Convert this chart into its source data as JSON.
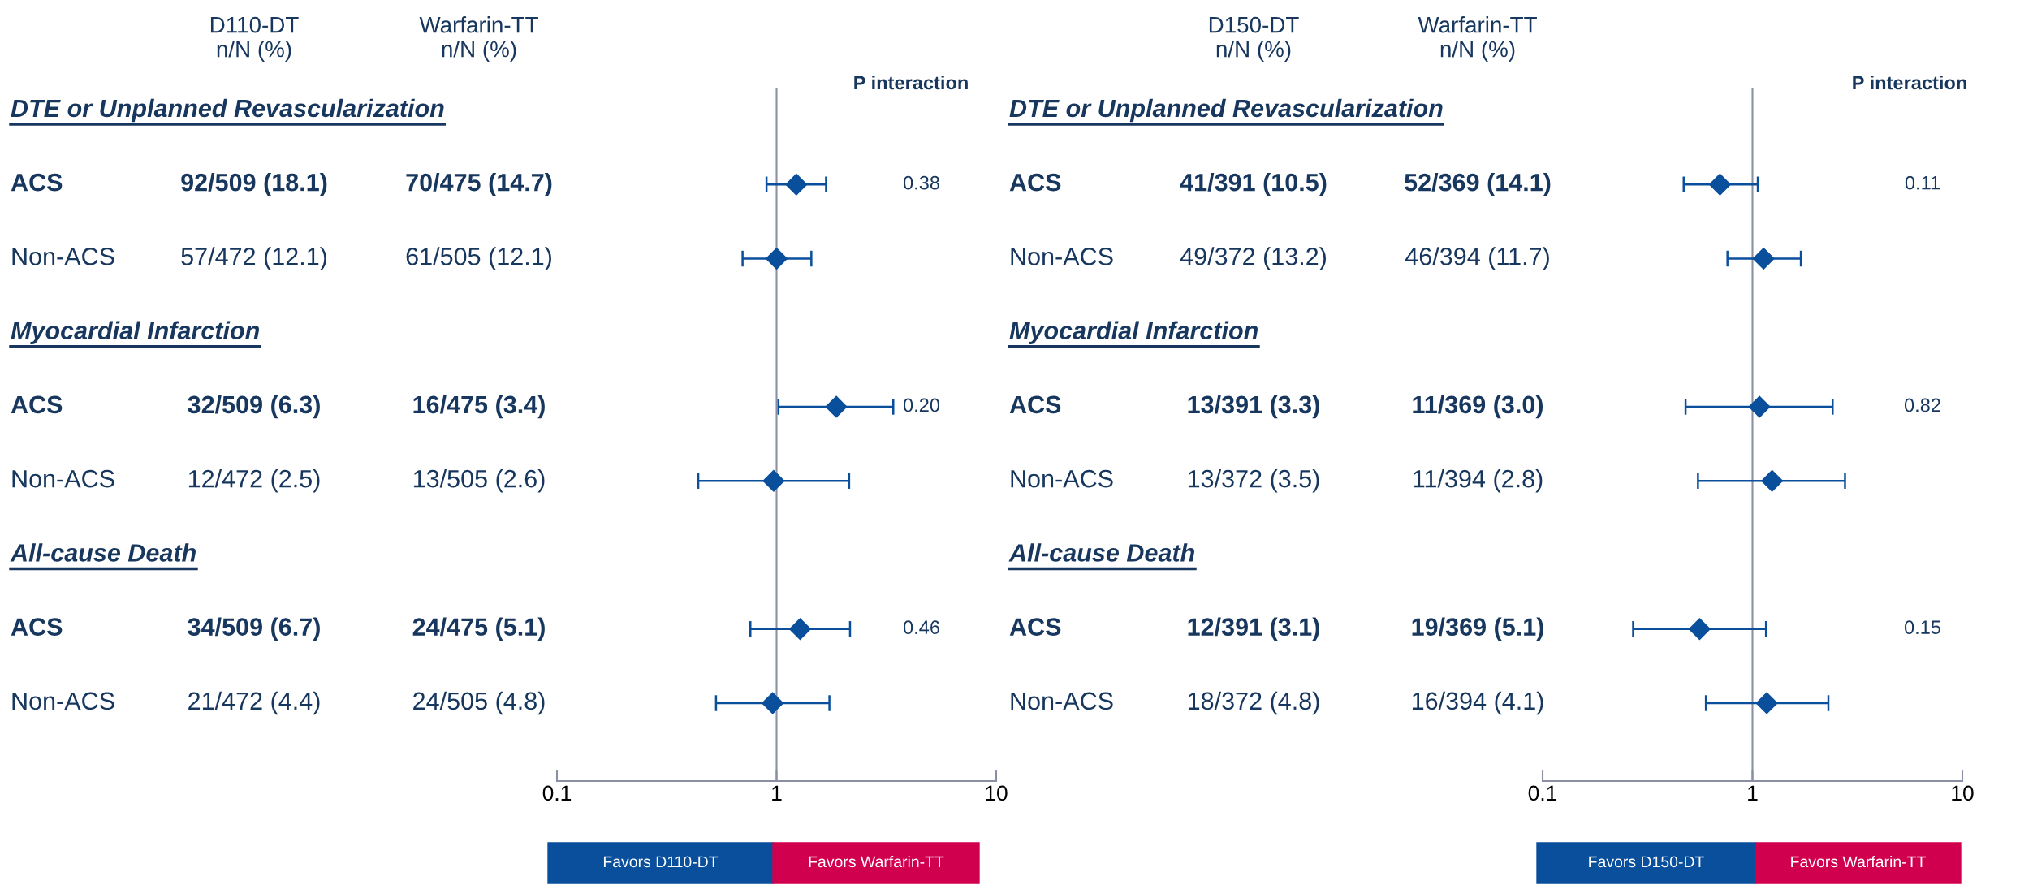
{
  "chart_data": [
    {
      "type": "scatter",
      "orientation": "horizontal",
      "log": "x",
      "xlim": [
        0.1,
        10
      ],
      "xticks": [
        0.1,
        1,
        10
      ],
      "tick_labels": "x",
      "grid": false,
      "legend": false,
      "marker": "diamond",
      "categories": [
        "DTE or Unplanned Revascularization",
        "ACS",
        "Non-ACS",
        "Myocardial Infarction",
        "ACS",
        "Non-ACS",
        "All-cause Death",
        "ACS",
        "Non-ACS"
      ],
      "series": [
        {
          "color": "#0a4f9c",
          "values": [
            null,
            1.23,
            1.0,
            null,
            1.87,
            0.97,
            null,
            1.28,
            0.96
          ],
          "errors": [
            null,
            [
              0.9,
              1.68
            ],
            [
              0.7,
              1.44
            ],
            null,
            [
              1.02,
              3.4
            ],
            [
              0.44,
              2.14
            ],
            null,
            [
              0.76,
              2.16
            ],
            [
              0.53,
              1.74
            ]
          ]
        }
      ],
      "ref_lines": [
        {
          "axis": "x",
          "value": 1,
          "color": "#8a8fa3"
        }
      ],
      "annotations": [
        "D110-DT\nn/N (%)",
        "Warfarin-TT\nn/N (%)",
        "P interaction",
        "92/509 (18.1)",
        "70/475 (14.7)",
        "57/472 (12.1)",
        "61/505 (12.1)",
        "32/509 (6.3)",
        "16/475 (3.4)",
        "12/472 (2.5)",
        "13/505 (2.6)",
        "34/509 (6.7)",
        "24/475 (5.1)",
        "21/472 (4.4)",
        "24/505 (4.8)",
        "0.38",
        "0.20",
        "0.46",
        "Favors D110-DT",
        "Favors Warfarin-TT"
      ]
    },
    {
      "type": "scatter",
      "orientation": "horizontal",
      "log": "x",
      "xlim": [
        0.1,
        10
      ],
      "xticks": [
        0.1,
        1,
        10
      ],
      "tick_labels": "x",
      "grid": false,
      "legend": false,
      "marker": "diamond",
      "categories": [
        "DTE or Unplanned Revascularization",
        "ACS",
        "Non-ACS",
        "Myocardial Infarction",
        "ACS",
        "Non-ACS",
        "All-cause Death",
        "ACS",
        "Non-ACS"
      ],
      "series": [
        {
          "color": "#0a4f9c",
          "values": [
            null,
            0.7,
            1.13,
            null,
            1.08,
            1.24,
            null,
            0.56,
            1.17
          ],
          "errors": [
            null,
            [
              0.47,
              1.06
            ],
            [
              0.76,
              1.7
            ],
            null,
            [
              0.48,
              2.41
            ],
            [
              0.55,
              2.76
            ],
            null,
            [
              0.27,
              1.16
            ],
            [
              0.6,
              2.3
            ]
          ]
        }
      ],
      "ref_lines": [
        {
          "axis": "x",
          "value": 1,
          "color": "#8a8fa3"
        }
      ],
      "annotations": [
        "D150-DT\nn/N (%)",
        "Warfarin-TT\nn/N (%)",
        "P interaction",
        "41/391 (10.5)",
        "52/369 (14.1)",
        "49/372 (13.2)",
        "46/394 (11.7)",
        "13/391 (3.3)",
        "11/369 (3.0)",
        "13/372 (3.5)",
        "11/394 (2.8)",
        "12/391 (3.1)",
        "19/369 (5.1)",
        "18/372 (4.8)",
        "16/394 (4.1)",
        "0.11",
        "0.82",
        "0.15",
        "Favors D150-DT",
        "Favors Warfarin-TT"
      ]
    }
  ]
}
